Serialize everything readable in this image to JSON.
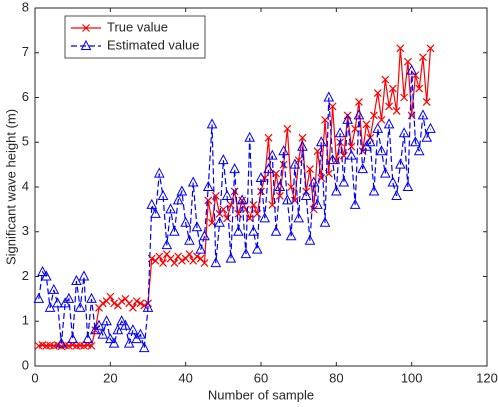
{
  "chart_data": {
    "type": "line",
    "xlabel": "Number of sample",
    "ylabel": "Significant wave height (m)",
    "x": [
      1,
      2,
      3,
      4,
      5,
      6,
      7,
      8,
      9,
      10,
      11,
      12,
      13,
      14,
      15,
      16,
      17,
      18,
      19,
      20,
      21,
      22,
      23,
      24,
      25,
      26,
      27,
      28,
      29,
      30,
      31,
      32,
      33,
      34,
      35,
      36,
      37,
      38,
      39,
      40,
      41,
      42,
      43,
      44,
      45,
      46,
      47,
      48,
      49,
      50,
      51,
      52,
      53,
      54,
      55,
      56,
      57,
      58,
      59,
      60,
      61,
      62,
      63,
      64,
      65,
      66,
      67,
      68,
      69,
      70,
      71,
      72,
      73,
      74,
      75,
      76,
      77,
      78,
      79,
      80,
      81,
      82,
      83,
      84,
      85,
      86,
      87,
      88,
      89,
      90,
      91,
      92,
      93,
      94,
      95,
      96,
      97,
      98,
      99,
      100,
      101,
      102,
      103,
      104,
      105
    ],
    "series": [
      {
        "name": "True value",
        "color": "#ff0000",
        "marker": "x",
        "dash": false,
        "values": [
          0.45,
          0.47,
          0.45,
          0.46,
          0.45,
          0.47,
          0.44,
          0.46,
          0.45,
          0.47,
          0.45,
          0.46,
          0.45,
          0.47,
          0.45,
          0.8,
          1.3,
          1.4,
          1.45,
          1.55,
          1.4,
          1.35,
          1.45,
          1.5,
          1.4,
          1.3,
          1.45,
          1.4,
          1.35,
          1.4,
          2.4,
          2.35,
          2.45,
          2.3,
          2.5,
          2.4,
          2.3,
          2.45,
          2.35,
          2.4,
          2.5,
          2.35,
          2.45,
          2.4,
          2.3,
          3.7,
          3.2,
          3.8,
          3.4,
          3.5,
          3.3,
          3.6,
          3.9,
          3.4,
          3.7,
          3.5,
          3.3,
          3.6,
          3.4,
          3.9,
          4.2,
          5.1,
          3.6,
          4.3,
          3.8,
          4.5,
          5.3,
          4.0,
          3.7,
          4.6,
          5.1,
          3.9,
          4.4,
          3.5,
          4.8,
          4.2,
          5.5,
          4.3,
          5.8,
          4.6,
          5.0,
          4.7,
          5.6,
          4.9,
          5.3,
          5.9,
          4.8,
          5.4,
          5.1,
          5.6,
          6.1,
          5.5,
          6.4,
          5.8,
          6.2,
          5.7,
          7.1,
          6.0,
          6.8,
          5.6,
          6.5,
          6.2,
          6.9,
          5.9,
          7.1
        ]
      },
      {
        "name": "Estimated value",
        "color": "#0000ff",
        "marker": "triangle",
        "dash": true,
        "values": [
          1.5,
          2.1,
          2.0,
          1.3,
          1.7,
          1.4,
          0.5,
          1.4,
          1.5,
          0.6,
          1.9,
          1.3,
          2.0,
          0.6,
          1.5,
          0.8,
          0.9,
          0.7,
          1.0,
          0.6,
          0.5,
          0.8,
          1.0,
          0.9,
          0.5,
          0.8,
          0.6,
          0.7,
          0.4,
          1.3,
          3.6,
          3.4,
          4.3,
          3.8,
          2.7,
          3.5,
          3.0,
          3.7,
          3.9,
          3.2,
          2.8,
          4.1,
          3.1,
          2.6,
          2.9,
          4.0,
          5.4,
          2.3,
          3.2,
          4.6,
          3.8,
          2.4,
          4.4,
          3.0,
          3.7,
          2.5,
          5.1,
          3.0,
          2.6,
          4.2,
          3.3,
          4.4,
          4.7,
          3.0,
          4.0,
          4.8,
          3.7,
          2.9,
          4.5,
          3.3,
          4.9,
          3.8,
          2.8,
          4.1,
          3.6,
          5.0,
          3.2,
          6.0,
          4.6,
          3.9,
          5.2,
          4.1,
          5.5,
          4.7,
          3.6,
          5.6,
          4.4,
          4.9,
          5.0,
          3.9,
          5.3,
          4.8,
          4.3,
          5.4,
          4.1,
          3.8,
          4.5,
          5.2,
          4.0,
          6.6,
          5.0,
          4.8,
          5.6,
          5.1,
          5.3
        ]
      }
    ],
    "xlim": [
      0,
      120
    ],
    "xticks": [
      0,
      20,
      40,
      60,
      80,
      100,
      120
    ],
    "ylim": [
      0,
      8
    ],
    "yticks": [
      0,
      1,
      2,
      3,
      4,
      5,
      6,
      7,
      8
    ],
    "grid": false,
    "legend": "upper left"
  }
}
